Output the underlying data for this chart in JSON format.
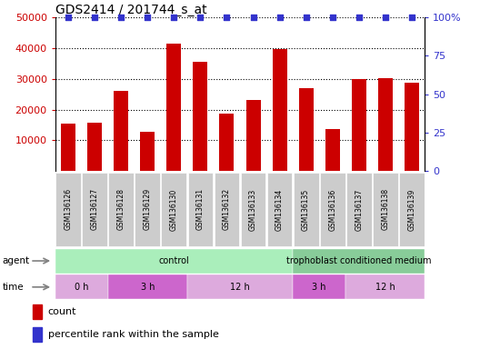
{
  "title": "GDS2414 / 201744_s_at",
  "samples": [
    "GSM136126",
    "GSM136127",
    "GSM136128",
    "GSM136129",
    "GSM136130",
    "GSM136131",
    "GSM136132",
    "GSM136133",
    "GSM136134",
    "GSM136135",
    "GSM136136",
    "GSM136137",
    "GSM136138",
    "GSM136139"
  ],
  "counts": [
    15500,
    15700,
    26200,
    12800,
    41500,
    35500,
    18800,
    23200,
    39800,
    27000,
    13800,
    30000,
    30200,
    28800
  ],
  "percentile_ranks": [
    100,
    100,
    100,
    100,
    100,
    100,
    100,
    100,
    100,
    100,
    100,
    100,
    100,
    100
  ],
  "bar_color": "#CC0000",
  "percentile_color": "#3333CC",
  "ylim_left": [
    0,
    50000
  ],
  "ylim_right": [
    0,
    100
  ],
  "yticks_left": [
    10000,
    20000,
    30000,
    40000,
    50000
  ],
  "yticks_right": [
    0,
    25,
    50,
    75,
    100
  ],
  "ytick_labels_left": [
    "10000",
    "20000",
    "30000",
    "40000",
    "50000"
  ],
  "ytick_labels_right": [
    "0",
    "25",
    "50",
    "75",
    "100%"
  ],
  "agent_groups": [
    {
      "label": "control",
      "start": 0,
      "end": 9,
      "color": "#AAEEBB"
    },
    {
      "label": "trophoblast conditioned medium",
      "start": 9,
      "end": 14,
      "color": "#88CC99"
    }
  ],
  "time_groups": [
    {
      "label": "0 h",
      "start": 0,
      "end": 2,
      "color": "#DDAADD"
    },
    {
      "label": "3 h",
      "start": 2,
      "end": 5,
      "color": "#CC66CC"
    },
    {
      "label": "12 h",
      "start": 5,
      "end": 9,
      "color": "#DDAADD"
    },
    {
      "label": "3 h",
      "start": 9,
      "end": 11,
      "color": "#CC66CC"
    },
    {
      "label": "12 h",
      "start": 11,
      "end": 14,
      "color": "#DDAADD"
    }
  ],
  "bg_color": "#FFFFFF",
  "tick_label_color_left": "#CC0000",
  "tick_label_color_right": "#3333CC",
  "sample_box_color": "#CCCCCC",
  "label_fontsize": 7,
  "bar_width": 0.55
}
